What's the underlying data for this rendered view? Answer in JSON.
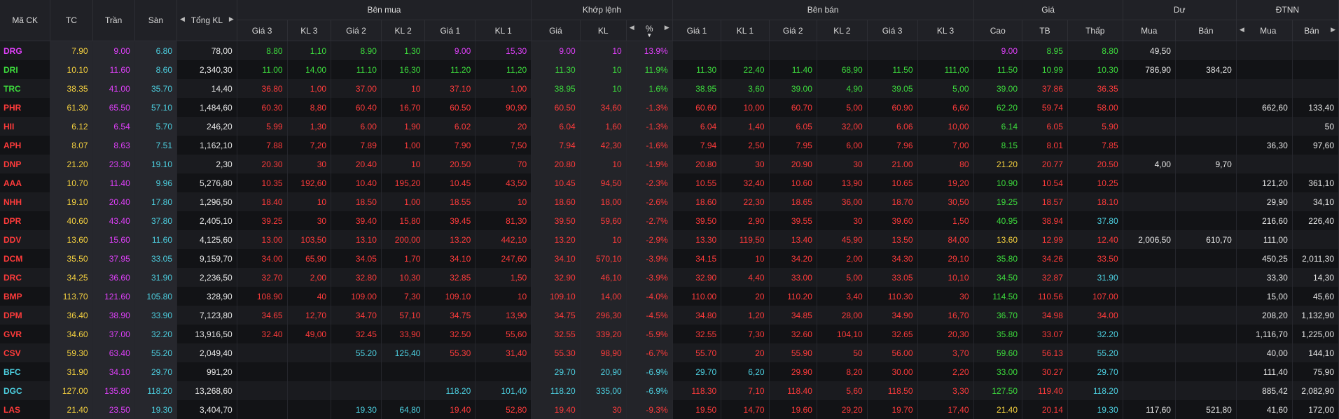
{
  "colors": {
    "up": "#3ddc3d",
    "down": "#ff3b3b",
    "reference": "#f4d03f",
    "ceiling": "#e040fb",
    "floor": "#4dd0e1"
  },
  "header": {
    "symbol": "Mã CK",
    "ref": "TC",
    "ceil": "Trần",
    "floor": "Sàn",
    "total_vol": "Tổng KL",
    "bid_group": "Bên mua",
    "match_group": "Khớp lệnh",
    "ask_group": "Bên bán",
    "price_group": "Giá",
    "remain_group": "Dư",
    "foreign_group": "ĐTNN",
    "bid_cols": [
      "Giá 3",
      "KL 3",
      "Giá 2",
      "KL 2",
      "Giá 1",
      "KL 1"
    ],
    "match_cols": [
      "Giá",
      "KL",
      "%"
    ],
    "ask_cols": [
      "Giá 1",
      "KL 1",
      "Giá 2",
      "KL 2",
      "Giá 3",
      "KL 3"
    ],
    "price_cols": [
      "Cao",
      "TB",
      "Thấp"
    ],
    "remain_cols": [
      "Mua",
      "Bán"
    ],
    "foreign_cols": [
      "Mua",
      "Bán"
    ]
  },
  "rows": [
    {
      "sym": "DRG",
      "sc": "ceil",
      "ref": "7.90",
      "ceil": "9.00",
      "flr": "6.80",
      "tot": "78,00",
      "b": [
        "8.80",
        "1,10",
        "8.90",
        "1,30",
        "9.00",
        "15,30"
      ],
      "bc": [
        "up",
        "up",
        "up",
        "up",
        "ceil",
        "ceil"
      ],
      "m": [
        "9.00",
        "10",
        "13.9%"
      ],
      "mc": "ceil",
      "a": [
        "",
        "",
        "",
        "",
        "",
        ""
      ],
      "ac": [
        "",
        "",
        "",
        "",
        "",
        ""
      ],
      "p": [
        "9.00",
        "8.95",
        "8.80"
      ],
      "pc": [
        "ceil",
        "up",
        "up"
      ],
      "r": [
        "49,50",
        ""
      ],
      "f": [
        "",
        ""
      ]
    },
    {
      "sym": "DRI",
      "sc": "up",
      "ref": "10.10",
      "ceil": "11.60",
      "flr": "8.60",
      "tot": "2,340,30",
      "b": [
        "11.00",
        "14,00",
        "11.10",
        "16,30",
        "11.20",
        "11,20"
      ],
      "bc": [
        "up",
        "up",
        "up",
        "up",
        "up",
        "up"
      ],
      "m": [
        "11.30",
        "10",
        "11.9%"
      ],
      "mc": "up",
      "a": [
        "11.30",
        "22,40",
        "11.40",
        "68,90",
        "11.50",
        "111,00"
      ],
      "ac": [
        "up",
        "up",
        "up",
        "up",
        "up",
        "up"
      ],
      "p": [
        "11.50",
        "10.99",
        "10.30"
      ],
      "pc": [
        "up",
        "up",
        "up"
      ],
      "r": [
        "786,90",
        "384,20"
      ],
      "f": [
        "",
        ""
      ]
    },
    {
      "sym": "TRC",
      "sc": "up",
      "ref": "38.35",
      "ceil": "41.00",
      "flr": "35.70",
      "tot": "14,40",
      "b": [
        "36.80",
        "1,00",
        "37.00",
        "10",
        "37.10",
        "1,00"
      ],
      "bc": [
        "dn",
        "dn",
        "dn",
        "dn",
        "dn",
        "dn"
      ],
      "m": [
        "38.95",
        "10",
        "1.6%"
      ],
      "mc": "up",
      "a": [
        "38.95",
        "3,60",
        "39.00",
        "4,90",
        "39.05",
        "5,00"
      ],
      "ac": [
        "up",
        "up",
        "up",
        "up",
        "up",
        "up"
      ],
      "p": [
        "39.00",
        "37.86",
        "36.35"
      ],
      "pc": [
        "up",
        "dn",
        "dn"
      ],
      "r": [
        "",
        ""
      ],
      "f": [
        "",
        ""
      ]
    },
    {
      "sym": "PHR",
      "sc": "dn",
      "ref": "61.30",
      "ceil": "65.50",
      "flr": "57.10",
      "tot": "1,484,60",
      "b": [
        "60.30",
        "8,80",
        "60.40",
        "16,70",
        "60.50",
        "90,90"
      ],
      "bc": [
        "dn",
        "dn",
        "dn",
        "dn",
        "dn",
        "dn"
      ],
      "m": [
        "60.50",
        "34,60",
        "-1.3%"
      ],
      "mc": "dn",
      "a": [
        "60.60",
        "10,00",
        "60.70",
        "5,00",
        "60.90",
        "6,60"
      ],
      "ac": [
        "dn",
        "dn",
        "dn",
        "dn",
        "dn",
        "dn"
      ],
      "p": [
        "62.20",
        "59.74",
        "58.00"
      ],
      "pc": [
        "up",
        "dn",
        "dn"
      ],
      "r": [
        "",
        ""
      ],
      "f": [
        "662,60",
        "133,40"
      ]
    },
    {
      "sym": "HII",
      "sc": "dn",
      "ref": "6.12",
      "ceil": "6.54",
      "flr": "5.70",
      "tot": "246,20",
      "b": [
        "5.99",
        "1,30",
        "6.00",
        "1,90",
        "6.02",
        "20"
      ],
      "bc": [
        "dn",
        "dn",
        "dn",
        "dn",
        "dn",
        "dn"
      ],
      "m": [
        "6.04",
        "1,60",
        "-1.3%"
      ],
      "mc": "dn",
      "a": [
        "6.04",
        "1,40",
        "6.05",
        "32,00",
        "6.06",
        "10,00"
      ],
      "ac": [
        "dn",
        "dn",
        "dn",
        "dn",
        "dn",
        "dn"
      ],
      "p": [
        "6.14",
        "6.05",
        "5.90"
      ],
      "pc": [
        "up",
        "dn",
        "dn"
      ],
      "r": [
        "",
        ""
      ],
      "f": [
        "",
        "50"
      ]
    },
    {
      "sym": "APH",
      "sc": "dn",
      "ref": "8.07",
      "ceil": "8.63",
      "flr": "7.51",
      "tot": "1,162,10",
      "b": [
        "7.88",
        "7,20",
        "7.89",
        "1,00",
        "7.90",
        "7,50"
      ],
      "bc": [
        "dn",
        "dn",
        "dn",
        "dn",
        "dn",
        "dn"
      ],
      "m": [
        "7.94",
        "42,30",
        "-1.6%"
      ],
      "mc": "dn",
      "a": [
        "7.94",
        "2,50",
        "7.95",
        "6,00",
        "7.96",
        "7,00"
      ],
      "ac": [
        "dn",
        "dn",
        "dn",
        "dn",
        "dn",
        "dn"
      ],
      "p": [
        "8.15",
        "8.01",
        "7.85"
      ],
      "pc": [
        "up",
        "dn",
        "dn"
      ],
      "r": [
        "",
        ""
      ],
      "f": [
        "36,30",
        "97,60"
      ]
    },
    {
      "sym": "DNP",
      "sc": "dn",
      "ref": "21.20",
      "ceil": "23.30",
      "flr": "19.10",
      "tot": "2,30",
      "b": [
        "20.30",
        "30",
        "20.40",
        "10",
        "20.50",
        "70"
      ],
      "bc": [
        "dn",
        "dn",
        "dn",
        "dn",
        "dn",
        "dn"
      ],
      "m": [
        "20.80",
        "10",
        "-1.9%"
      ],
      "mc": "dn",
      "a": [
        "20.80",
        "30",
        "20.90",
        "30",
        "21.00",
        "80"
      ],
      "ac": [
        "dn",
        "dn",
        "dn",
        "dn",
        "dn",
        "dn"
      ],
      "p": [
        "21.20",
        "20.77",
        "20.50"
      ],
      "pc": [
        "ref",
        "dn",
        "dn"
      ],
      "r": [
        "4,00",
        "9,70"
      ],
      "f": [
        "",
        ""
      ]
    },
    {
      "sym": "AAA",
      "sc": "dn",
      "ref": "10.70",
      "ceil": "11.40",
      "flr": "9.96",
      "tot": "5,276,80",
      "b": [
        "10.35",
        "192,60",
        "10.40",
        "195,20",
        "10.45",
        "43,50"
      ],
      "bc": [
        "dn",
        "dn",
        "dn",
        "dn",
        "dn",
        "dn"
      ],
      "m": [
        "10.45",
        "94,50",
        "-2.3%"
      ],
      "mc": "dn",
      "a": [
        "10.55",
        "32,40",
        "10.60",
        "13,90",
        "10.65",
        "19,20"
      ],
      "ac": [
        "dn",
        "dn",
        "dn",
        "dn",
        "dn",
        "dn"
      ],
      "p": [
        "10.90",
        "10.54",
        "10.25"
      ],
      "pc": [
        "up",
        "dn",
        "dn"
      ],
      "r": [
        "",
        ""
      ],
      "f": [
        "121,20",
        "361,10"
      ]
    },
    {
      "sym": "NHH",
      "sc": "dn",
      "ref": "19.10",
      "ceil": "20.40",
      "flr": "17.80",
      "tot": "1,296,50",
      "b": [
        "18.40",
        "10",
        "18.50",
        "1,00",
        "18.55",
        "10"
      ],
      "bc": [
        "dn",
        "dn",
        "dn",
        "dn",
        "dn",
        "dn"
      ],
      "m": [
        "18.60",
        "18,00",
        "-2.6%"
      ],
      "mc": "dn",
      "a": [
        "18.60",
        "22,30",
        "18.65",
        "36,00",
        "18.70",
        "30,50"
      ],
      "ac": [
        "dn",
        "dn",
        "dn",
        "dn",
        "dn",
        "dn"
      ],
      "p": [
        "19.25",
        "18.57",
        "18.10"
      ],
      "pc": [
        "up",
        "dn",
        "dn"
      ],
      "r": [
        "",
        ""
      ],
      "f": [
        "29,90",
        "34,10"
      ]
    },
    {
      "sym": "DPR",
      "sc": "dn",
      "ref": "40.60",
      "ceil": "43.40",
      "flr": "37.80",
      "tot": "2,405,10",
      "b": [
        "39.25",
        "30",
        "39.40",
        "15,80",
        "39.45",
        "81,30"
      ],
      "bc": [
        "dn",
        "dn",
        "dn",
        "dn",
        "dn",
        "dn"
      ],
      "m": [
        "39.50",
        "59,60",
        "-2.7%"
      ],
      "mc": "dn",
      "a": [
        "39.50",
        "2,90",
        "39.55",
        "30",
        "39.60",
        "1,50"
      ],
      "ac": [
        "dn",
        "dn",
        "dn",
        "dn",
        "dn",
        "dn"
      ],
      "p": [
        "40.95",
        "38.94",
        "37.80"
      ],
      "pc": [
        "up",
        "dn",
        "flr"
      ],
      "r": [
        "",
        ""
      ],
      "f": [
        "216,60",
        "226,40"
      ]
    },
    {
      "sym": "DDV",
      "sc": "dn",
      "ref": "13.60",
      "ceil": "15.60",
      "flr": "11.60",
      "tot": "4,125,60",
      "b": [
        "13.00",
        "103,50",
        "13.10",
        "200,00",
        "13.20",
        "442,10"
      ],
      "bc": [
        "dn",
        "dn",
        "dn",
        "dn",
        "dn",
        "dn"
      ],
      "m": [
        "13.20",
        "10",
        "-2.9%"
      ],
      "mc": "dn",
      "a": [
        "13.30",
        "119,50",
        "13.40",
        "45,90",
        "13.50",
        "84,00"
      ],
      "ac": [
        "dn",
        "dn",
        "dn",
        "dn",
        "dn",
        "dn"
      ],
      "p": [
        "13.60",
        "12.99",
        "12.40"
      ],
      "pc": [
        "ref",
        "dn",
        "dn"
      ],
      "r": [
        "2,006,50",
        "610,70"
      ],
      "f": [
        "111,00",
        ""
      ]
    },
    {
      "sym": "DCM",
      "sc": "dn",
      "ref": "35.50",
      "ceil": "37.95",
      "flr": "33.05",
      "tot": "9,159,70",
      "b": [
        "34.00",
        "65,90",
        "34.05",
        "1,70",
        "34.10",
        "247,60"
      ],
      "bc": [
        "dn",
        "dn",
        "dn",
        "dn",
        "dn",
        "dn"
      ],
      "m": [
        "34.10",
        "570,10",
        "-3.9%"
      ],
      "mc": "dn",
      "a": [
        "34.15",
        "10",
        "34.20",
        "2,00",
        "34.30",
        "29,10"
      ],
      "ac": [
        "dn",
        "dn",
        "dn",
        "dn",
        "dn",
        "dn"
      ],
      "p": [
        "35.80",
        "34.26",
        "33.50"
      ],
      "pc": [
        "up",
        "dn",
        "dn"
      ],
      "r": [
        "",
        ""
      ],
      "f": [
        "450,25",
        "2,011,30"
      ]
    },
    {
      "sym": "DRC",
      "sc": "dn",
      "ref": "34.25",
      "ceil": "36.60",
      "flr": "31.90",
      "tot": "2,236,50",
      "b": [
        "32.70",
        "2,00",
        "32.80",
        "10,30",
        "32.85",
        "1,50"
      ],
      "bc": [
        "dn",
        "dn",
        "dn",
        "dn",
        "dn",
        "dn"
      ],
      "m": [
        "32.90",
        "46,10",
        "-3.9%"
      ],
      "mc": "dn",
      "a": [
        "32.90",
        "4,40",
        "33.00",
        "5,00",
        "33.05",
        "10,10"
      ],
      "ac": [
        "dn",
        "dn",
        "dn",
        "dn",
        "dn",
        "dn"
      ],
      "p": [
        "34.50",
        "32.87",
        "31.90"
      ],
      "pc": [
        "up",
        "dn",
        "flr"
      ],
      "r": [
        "",
        ""
      ],
      "f": [
        "33,30",
        "14,30"
      ]
    },
    {
      "sym": "BMP",
      "sc": "dn",
      "ref": "113.70",
      "ceil": "121.60",
      "flr": "105.80",
      "tot": "328,90",
      "b": [
        "108.90",
        "40",
        "109.00",
        "7,30",
        "109.10",
        "10"
      ],
      "bc": [
        "dn",
        "dn",
        "dn",
        "dn",
        "dn",
        "dn"
      ],
      "m": [
        "109.10",
        "14,00",
        "-4.0%"
      ],
      "mc": "dn",
      "a": [
        "110.00",
        "20",
        "110.20",
        "3,40",
        "110.30",
        "30"
      ],
      "ac": [
        "dn",
        "dn",
        "dn",
        "dn",
        "dn",
        "dn"
      ],
      "p": [
        "114.50",
        "110.56",
        "107.00"
      ],
      "pc": [
        "up",
        "dn",
        "dn"
      ],
      "r": [
        "",
        ""
      ],
      "f": [
        "15,00",
        "45,60"
      ]
    },
    {
      "sym": "DPM",
      "sc": "dn",
      "ref": "36.40",
      "ceil": "38.90",
      "flr": "33.90",
      "tot": "7,123,80",
      "b": [
        "34.65",
        "12,70",
        "34.70",
        "57,10",
        "34.75",
        "13,90"
      ],
      "bc": [
        "dn",
        "dn",
        "dn",
        "dn",
        "dn",
        "dn"
      ],
      "m": [
        "34.75",
        "296,30",
        "-4.5%"
      ],
      "mc": "dn",
      "a": [
        "34.80",
        "1,20",
        "34.85",
        "28,00",
        "34.90",
        "16,70"
      ],
      "ac": [
        "dn",
        "dn",
        "dn",
        "dn",
        "dn",
        "dn"
      ],
      "p": [
        "36.70",
        "34.98",
        "34.00"
      ],
      "pc": [
        "up",
        "dn",
        "dn"
      ],
      "r": [
        "",
        ""
      ],
      "f": [
        "208,20",
        "1,132,90"
      ]
    },
    {
      "sym": "GVR",
      "sc": "dn",
      "ref": "34.60",
      "ceil": "37.00",
      "flr": "32.20",
      "tot": "13,916,50",
      "b": [
        "32.40",
        "49,00",
        "32.45",
        "33,90",
        "32.50",
        "55,60"
      ],
      "bc": [
        "dn",
        "dn",
        "dn",
        "dn",
        "dn",
        "dn"
      ],
      "m": [
        "32.55",
        "339,20",
        "-5.9%"
      ],
      "mc": "dn",
      "a": [
        "32.55",
        "7,30",
        "32.60",
        "104,10",
        "32.65",
        "20,30"
      ],
      "ac": [
        "dn",
        "dn",
        "dn",
        "dn",
        "dn",
        "dn"
      ],
      "p": [
        "35.80",
        "33.07",
        "32.20"
      ],
      "pc": [
        "up",
        "dn",
        "flr"
      ],
      "r": [
        "",
        ""
      ],
      "f": [
        "1,116,70",
        "1,225,00"
      ]
    },
    {
      "sym": "CSV",
      "sc": "dn",
      "ref": "59.30",
      "ceil": "63.40",
      "flr": "55.20",
      "tot": "2,049,40",
      "b": [
        "",
        "",
        "55.20",
        "125,40",
        "55.30",
        "31,40"
      ],
      "bc": [
        "",
        "",
        "flr",
        "flr",
        "dn",
        "dn"
      ],
      "m": [
        "55.30",
        "98,90",
        "-6.7%"
      ],
      "mc": "dn",
      "a": [
        "55.70",
        "20",
        "55.90",
        "50",
        "56.00",
        "3,70"
      ],
      "ac": [
        "dn",
        "dn",
        "dn",
        "dn",
        "dn",
        "dn"
      ],
      "p": [
        "59.60",
        "56.13",
        "55.20"
      ],
      "pc": [
        "up",
        "dn",
        "flr"
      ],
      "r": [
        "",
        ""
      ],
      "f": [
        "40,00",
        "144,10"
      ]
    },
    {
      "sym": "BFC",
      "sc": "flr",
      "ref": "31.90",
      "ceil": "34.10",
      "flr": "29.70",
      "tot": "991,20",
      "b": [
        "",
        "",
        "",
        "",
        "",
        ""
      ],
      "bc": [
        "",
        "",
        "",
        "",
        "",
        ""
      ],
      "m": [
        "29.70",
        "20,90",
        "-6.9%"
      ],
      "mc": "flr",
      "a": [
        "29.70",
        "6,20",
        "29.90",
        "8,20",
        "30.00",
        "2,20"
      ],
      "ac": [
        "flr",
        "flr",
        "dn",
        "dn",
        "dn",
        "dn"
      ],
      "p": [
        "33.00",
        "30.27",
        "29.70"
      ],
      "pc": [
        "up",
        "dn",
        "flr"
      ],
      "r": [
        "",
        ""
      ],
      "f": [
        "111,40",
        "75,90"
      ]
    },
    {
      "sym": "DGC",
      "sc": "flr",
      "ref": "127.00",
      "ceil": "135.80",
      "flr": "118.20",
      "tot": "13,268,60",
      "b": [
        "",
        "",
        "",
        "",
        "118.20",
        "101,40"
      ],
      "bc": [
        "",
        "",
        "",
        "",
        "flr",
        "flr"
      ],
      "m": [
        "118.20",
        "335,00",
        "-6.9%"
      ],
      "mc": "flr",
      "a": [
        "118.30",
        "7,10",
        "118.40",
        "5,60",
        "118.50",
        "3,30"
      ],
      "ac": [
        "dn",
        "dn",
        "dn",
        "dn",
        "dn",
        "dn"
      ],
      "p": [
        "127.50",
        "119.40",
        "118.20"
      ],
      "pc": [
        "up",
        "dn",
        "flr"
      ],
      "r": [
        "",
        ""
      ],
      "f": [
        "885,42",
        "2,082,90"
      ]
    },
    {
      "sym": "LAS",
      "sc": "dn",
      "ref": "21.40",
      "ceil": "23.50",
      "flr": "19.30",
      "tot": "3,404,70",
      "b": [
        "",
        "",
        "19.30",
        "64,80",
        "19.40",
        "52,80"
      ],
      "bc": [
        "",
        "",
        "flr",
        "flr",
        "dn",
        "dn"
      ],
      "m": [
        "19.40",
        "30",
        "-9.3%"
      ],
      "mc": "dn",
      "a": [
        "19.50",
        "14,70",
        "19.60",
        "29,20",
        "19.70",
        "17,40"
      ],
      "ac": [
        "dn",
        "dn",
        "dn",
        "dn",
        "dn",
        "dn"
      ],
      "p": [
        "21.40",
        "20.14",
        "19.30"
      ],
      "pc": [
        "ref",
        "dn",
        "flr"
      ],
      "r": [
        "117,60",
        "521,80"
      ],
      "f": [
        "41,60",
        "172,00"
      ]
    }
  ]
}
